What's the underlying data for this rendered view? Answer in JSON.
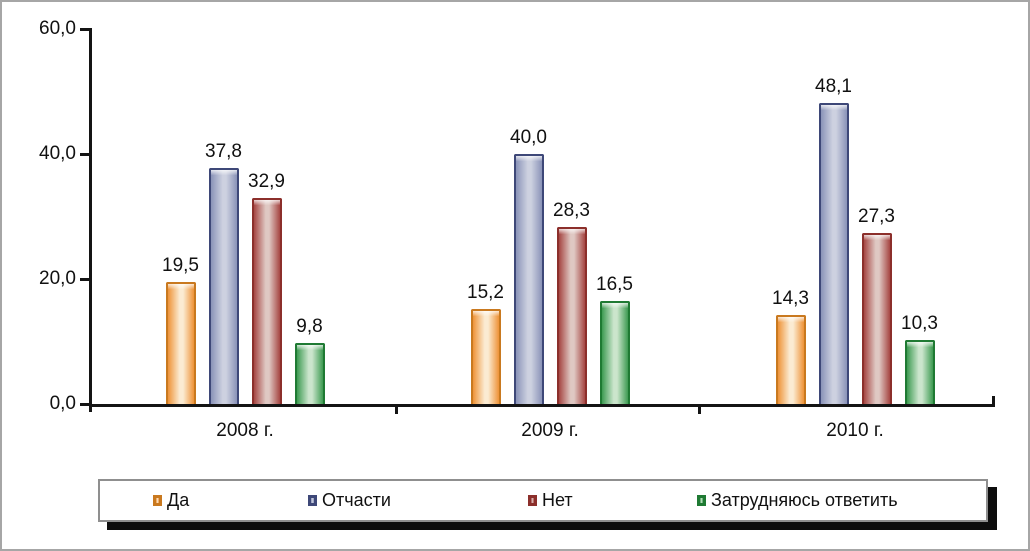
{
  "chart_data": {
    "type": "bar",
    "title": "",
    "categories": [
      "2008 г.",
      "2009 г.",
      "2010 г."
    ],
    "series": [
      {
        "name": "Да",
        "values": [
          19.5,
          15.2,
          14.3
        ],
        "value_labels": [
          "19,5",
          "15,2",
          "14,3"
        ],
        "color_border": "#c9791f",
        "color_dark": "#ee9338",
        "color_light": "#fbebd2"
      },
      {
        "name": "Отчасти",
        "values": [
          37.8,
          40.0,
          48.1
        ],
        "value_labels": [
          "37,8",
          "40,0",
          "48,1"
        ],
        "color_border": "#3e4878",
        "color_dark": "#8a93b8",
        "color_light": "#cdd1e0"
      },
      {
        "name": "Нет",
        "values": [
          32.9,
          28.3,
          27.3
        ],
        "value_labels": [
          "32,9",
          "28,3",
          "27,3"
        ],
        "color_border": "#8c2f2b",
        "color_dark": "#a64643",
        "color_light": "#dfc8c3"
      },
      {
        "name": "Затрудняюсь ответить",
        "values": [
          9.8,
          16.5,
          10.3
        ],
        "value_labels": [
          "9,8",
          "16,5",
          "10,3"
        ],
        "color_border": "#1f7a33",
        "color_dark": "#3e9b52",
        "color_light": "#cbe5cc"
      }
    ],
    "yticks": [
      {
        "value": 0,
        "label": "0,0"
      },
      {
        "value": 20,
        "label": "20,0"
      },
      {
        "value": 40,
        "label": "40,0"
      },
      {
        "value": 60,
        "label": "60,0"
      }
    ],
    "ylim": [
      0,
      60
    ],
    "xlabel": "",
    "ylabel": "",
    "grid": false,
    "legend_position": "bottom",
    "decimal_separator": ","
  }
}
